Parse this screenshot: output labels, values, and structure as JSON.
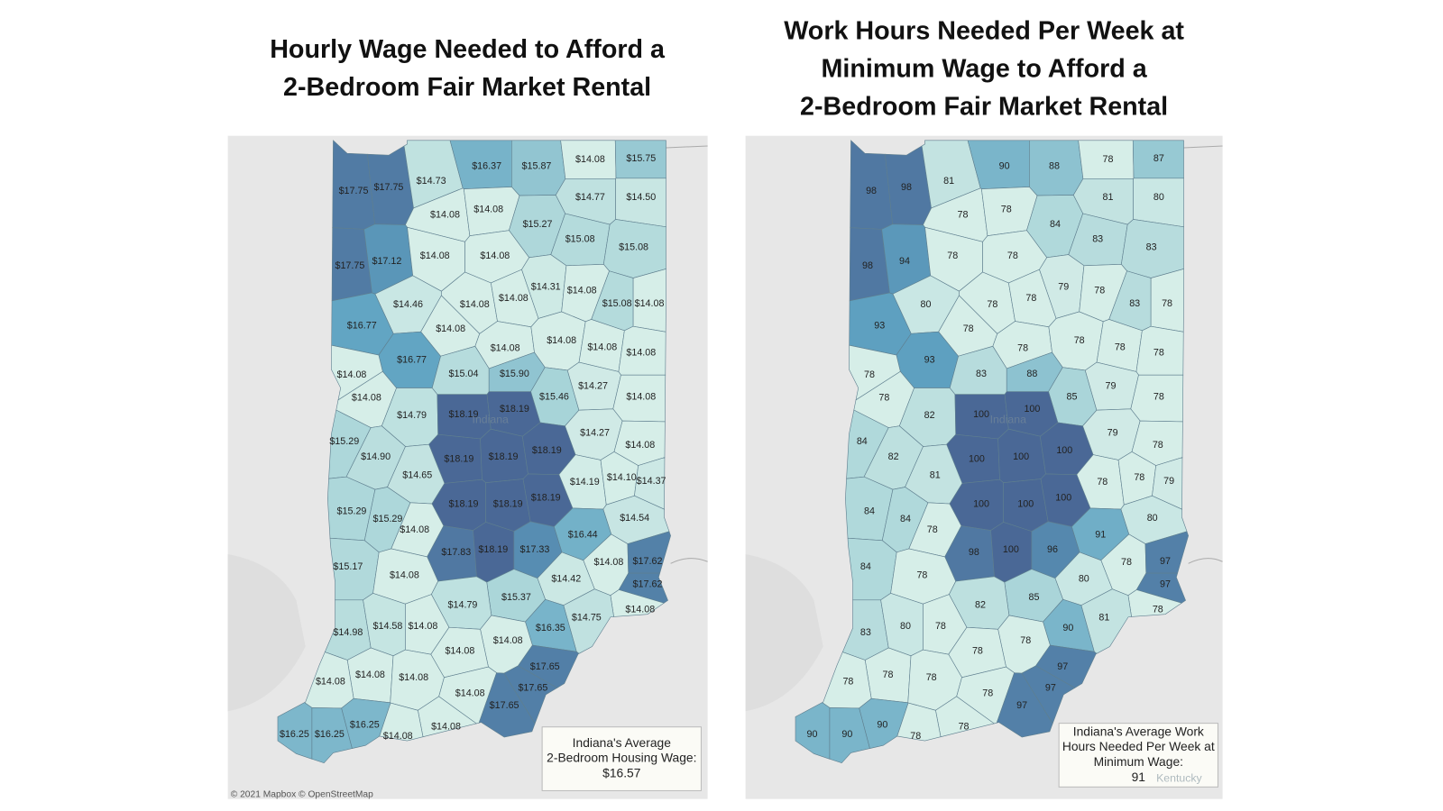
{
  "color_scale": [
    "#d6eee8",
    "#a8d4d8",
    "#5fa3c2",
    "#4a6896"
  ],
  "maps": [
    {
      "title": [
        "Hourly Wage Needed to Afford a",
        "2-Bedroom Fair Market Rental"
      ],
      "values": [
        17.75,
        17.75,
        14.73,
        16.37,
        15.87,
        14.08,
        15.75,
        14.08,
        14.08,
        14.77,
        14.5,
        15.27,
        17.75,
        17.12,
        14.08,
        14.08,
        15.08,
        15.08,
        14.46,
        14.08,
        14.08,
        14.31,
        14.08,
        15.08,
        14.08,
        16.77,
        14.08,
        14.08,
        14.08,
        14.08,
        14.08,
        16.77,
        14.08,
        15.04,
        15.9,
        14.08,
        15.46,
        14.27,
        14.08,
        14.79,
        18.19,
        18.19,
        14.27,
        15.29,
        14.08,
        14.9,
        18.19,
        18.19,
        18.19,
        14.65,
        14.19,
        14.1,
        14.37,
        15.29,
        15.29,
        18.19,
        18.19,
        18.19,
        14.54,
        14.08,
        16.44,
        17.83,
        18.19,
        17.33,
        14.08,
        17.62,
        15.17,
        14.08,
        14.42,
        17.62,
        15.37,
        14.79,
        14.08,
        14.75,
        16.35,
        14.98,
        14.58,
        14.08,
        14.08,
        14.08,
        17.65,
        14.08,
        14.08,
        14.08,
        17.65,
        14.08,
        16.25,
        17.65,
        14.08,
        16.25,
        16.25,
        14.08
      ],
      "value_labels": [
        "$17.75",
        "$17.75",
        "$14.73",
        "$16.37",
        "$15.87",
        "$14.08",
        "$15.75",
        "$14.08",
        "$14.08",
        "$14.77",
        "$14.50",
        "$15.27",
        "$17.75",
        "$17.12",
        "$14.08",
        "$14.08",
        "$15.08",
        "$15.08",
        "$14.46",
        "$14.08",
        "$14.08",
        "$14.31",
        "$14.08",
        "$15.08",
        "$14.08",
        "$16.77",
        "$14.08",
        "$14.08",
        "$14.08",
        "$14.08",
        "$14.08",
        "$16.77",
        "$14.08",
        "$15.04",
        "$15.90",
        "$14.08",
        "$15.46",
        "$14.27",
        "$14.08",
        "$14.79",
        "$18.19",
        "$18.19",
        "$14.27",
        "$15.29",
        "$14.08",
        "$14.90",
        "$18.19",
        "$18.19",
        "$18.19",
        "$14.65",
        "$14.19",
        "$14.10",
        "$14.37",
        "$15.29",
        "$15.29",
        "$18.19",
        "$18.19",
        "$18.19",
        "$14.54",
        "$14.08",
        "$16.44",
        "$17.83",
        "$18.19",
        "$17.33",
        "$14.08",
        "$17.62",
        "$15.17",
        "$14.08",
        "$14.42",
        "$17.62",
        "$15.37",
        "$14.79",
        "$14.08",
        "$14.75",
        "$16.35",
        "$14.98",
        "$14.58",
        "$14.08",
        "$14.08",
        "$14.08",
        "$17.65",
        "$14.08",
        "$14.08",
        "$14.08",
        "$17.65",
        "$14.08",
        "$16.25",
        "$17.65",
        "$14.08",
        "$16.25",
        "$16.25",
        "$14.08"
      ],
      "legend": [
        "Indiana's Average",
        "2-Bedroom Housing Wage:",
        "$16.57"
      ],
      "place_label": "Indiana",
      "attribution": "© 2021 Mapbox © OpenStreetMap"
    },
    {
      "title": [
        "Work Hours Needed Per Week at",
        "Minimum Wage to Afford a",
        "2-Bedroom Fair Market Rental"
      ],
      "values": [
        98,
        98,
        81,
        90,
        88,
        78,
        87,
        78,
        78,
        81,
        80,
        84,
        98,
        94,
        78,
        78,
        83,
        83,
        80,
        78,
        78,
        79,
        78,
        83,
        78,
        93,
        78,
        78,
        78,
        78,
        78,
        93,
        78,
        83,
        88,
        78,
        85,
        79,
        78,
        82,
        100,
        100,
        79,
        84,
        78,
        82,
        100,
        100,
        100,
        81,
        78,
        78,
        79,
        84,
        84,
        100,
        100,
        100,
        80,
        78,
        91,
        98,
        100,
        96,
        78,
        97,
        84,
        78,
        80,
        97,
        85,
        82,
        78,
        81,
        90,
        83,
        80,
        78,
        78,
        78,
        97,
        78,
        78,
        78,
        97,
        78,
        90,
        97,
        78,
        90,
        90,
        78
      ],
      "legend": [
        "Indiana's Average Work",
        "Hours Needed Per Week at",
        "Minimum Wage:",
        "91"
      ],
      "place_label": "Indiana",
      "place_label_2": "Kentucky"
    }
  ]
}
